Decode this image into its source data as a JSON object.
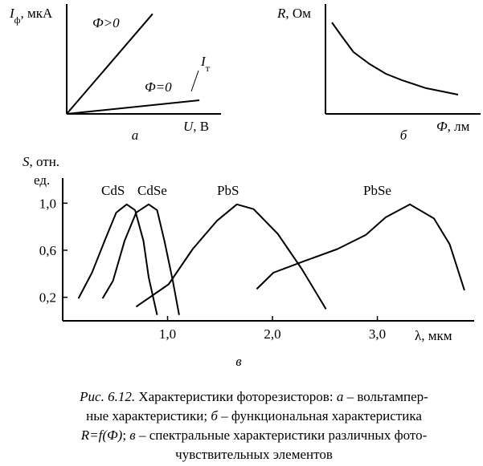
{
  "chart_data": [
    {
      "type": "line",
      "label": "а",
      "ylabel": [
        [
          {
            "text": "I",
            "italic": true
          },
          {
            "text": "ф",
            "sub": true
          },
          {
            "text": ", мкА"
          }
        ]
      ],
      "xlabel": [
        [
          {
            "text": "U",
            "italic": true
          },
          {
            "text": ", В"
          }
        ]
      ],
      "xlim": [
        0,
        10
      ],
      "ylim": [
        0,
        10
      ],
      "series": [
        {
          "name": "Ф>0",
          "color": "#000000",
          "x": [
            0,
            5.57
          ],
          "values": [
            0,
            9.1
          ]
        },
        {
          "name": "Ф=0",
          "color": "#000000",
          "x": [
            0,
            8.6
          ],
          "values": [
            0,
            1.24
          ]
        }
      ],
      "annotation": [
        {
          "text": "I",
          "italic": true
        },
        {
          "text": "т",
          "sub": true
        }
      ]
    },
    {
      "type": "line",
      "label": "б",
      "ylabel": [
        [
          {
            "text": "R",
            "italic": true
          },
          {
            "text": ", Ом"
          }
        ]
      ],
      "xlabel": [
        [
          {
            "text": "Ф",
            "italic": true
          },
          {
            "text": ", лм"
          }
        ]
      ],
      "xlim": [
        0,
        10
      ],
      "ylim": [
        0,
        10
      ],
      "series": [
        {
          "color": "#000000",
          "x": [
            0.41,
            1.03,
            1.79,
            2.82,
            3.85,
            4.87,
            6.41,
            8.46
          ],
          "values": [
            8.32,
            7.08,
            5.62,
            4.53,
            3.65,
            3.07,
            2.34,
            1.75
          ]
        }
      ]
    },
    {
      "type": "line",
      "label": "в",
      "ylabel": [
        [
          {
            "text": "S",
            "italic": true
          },
          {
            "text": ", отн."
          }
        ],
        [
          {
            "text": "ед."
          }
        ]
      ],
      "xlabel": [
        [
          {
            "text": "λ, мкм"
          }
        ]
      ],
      "xlim": [
        0,
        3.9
      ],
      "ylim": [
        0,
        1.2
      ],
      "xticks": [
        {
          "value": 1,
          "label": "1,0"
        },
        {
          "value": 2,
          "label": "2,0"
        },
        {
          "value": 3,
          "label": "3,0"
        }
      ],
      "yticks": [
        {
          "value": 0.2,
          "label": "0,2"
        },
        {
          "value": 0.6,
          "label": "0,6"
        },
        {
          "value": 1,
          "label": "1,0"
        }
      ],
      "series": [
        {
          "name": "CdS",
          "color": "#000000",
          "x": [
            0.15,
            0.28,
            0.4,
            0.51,
            0.61,
            0.69,
            0.77,
            0.82,
            0.9
          ],
          "values": [
            0.19,
            0.41,
            0.68,
            0.92,
            0.99,
            0.94,
            0.68,
            0.37,
            0.05
          ]
        },
        {
          "name": "CdSe",
          "color": "#000000",
          "x": [
            0.38,
            0.48,
            0.59,
            0.7,
            0.82,
            0.9,
            0.97,
            1.05,
            1.11
          ],
          "values": [
            0.19,
            0.34,
            0.68,
            0.92,
            0.99,
            0.94,
            0.68,
            0.34,
            0.05
          ]
        },
        {
          "name": "PbS",
          "color": "#000000",
          "x": [
            0.7,
            1.01,
            1.24,
            1.47,
            1.66,
            1.82,
            2.05,
            2.28,
            2.51
          ],
          "values": [
            0.12,
            0.31,
            0.61,
            0.85,
            0.99,
            0.95,
            0.74,
            0.44,
            0.1
          ]
        },
        {
          "name": "PbSe",
          "color": "#000000",
          "x": [
            1.85,
            2.01,
            2.31,
            2.62,
            2.89,
            3.08,
            3.31,
            3.54,
            3.69,
            3.83
          ],
          "values": [
            0.27,
            0.41,
            0.51,
            0.61,
            0.73,
            0.88,
            0.99,
            0.87,
            0.65,
            0.26
          ]
        }
      ]
    }
  ],
  "caption": [
    [
      {
        "text": "Рис. 6.12.",
        "italic": true
      },
      {
        "text": " Характеристики фоторезисторов: "
      },
      {
        "text": "а",
        "italic": true
      },
      {
        "text": " – вольтампер-"
      }
    ],
    [
      {
        "text": "ные характеристики; "
      },
      {
        "text": "б",
        "italic": true
      },
      {
        "text": " – функциональная характеристика"
      }
    ],
    [
      {
        "text": "R=f(Ф)",
        "italic": true
      },
      {
        "text": "; "
      },
      {
        "text": "в",
        "italic": true
      },
      {
        "text": " – спектральные характеристики различных фото-"
      }
    ],
    [
      {
        "text": "чувствительных элементов"
      }
    ]
  ]
}
